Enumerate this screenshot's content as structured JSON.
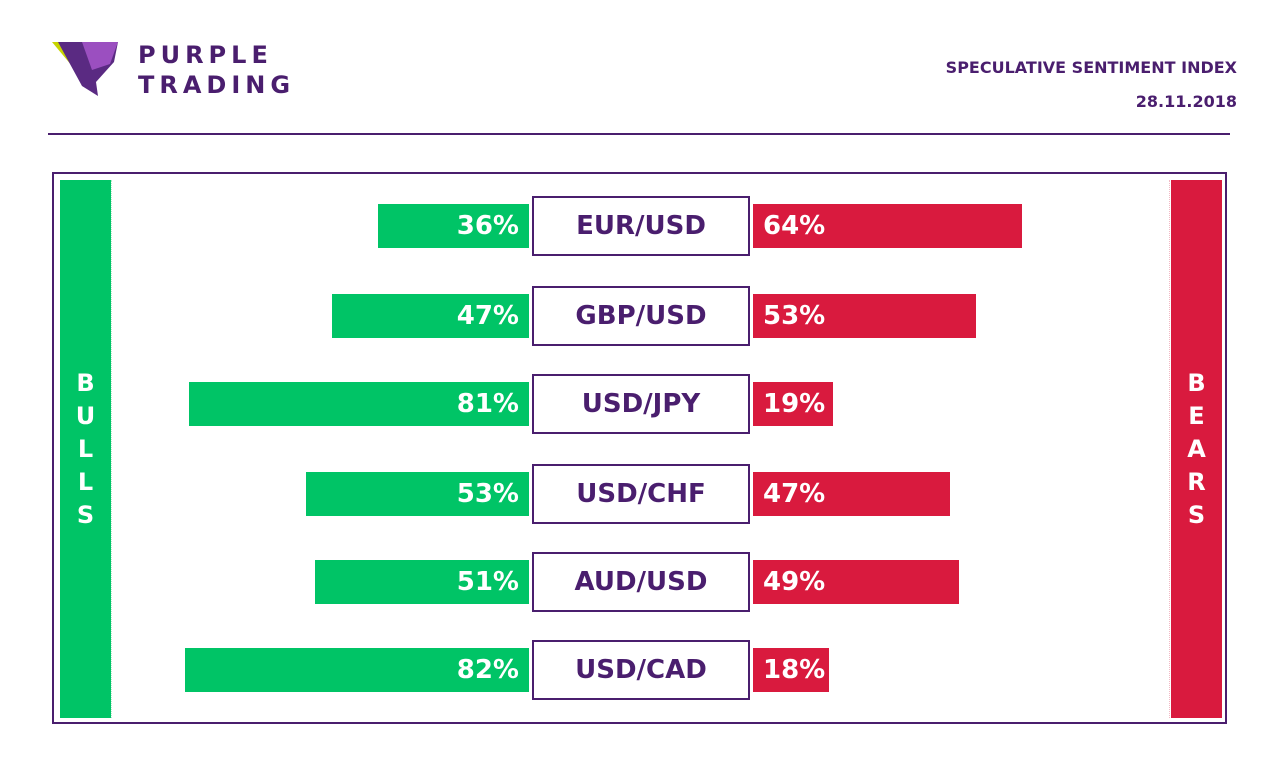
{
  "brand": {
    "line1": "PURPLE",
    "line2": "TRADING",
    "colors": {
      "purple": "#4a1e6e",
      "lime": "#c8d400",
      "violet": "#8b3fb0"
    }
  },
  "header": {
    "title": "SPECULATIVE SENTIMENT INDEX",
    "date": "28.11.2018"
  },
  "side": {
    "bulls": [
      "B",
      "U",
      "L",
      "L",
      "S"
    ],
    "bears": [
      "B",
      "E",
      "A",
      "R",
      "S"
    ]
  },
  "colors": {
    "bull": "#00c466",
    "bear": "#d91a3e",
    "accent": "#4a1e6e"
  },
  "chart_data": {
    "type": "bar",
    "categories": [
      "EUR/USD",
      "GBP/USD",
      "USD/JPY",
      "USD/CHF",
      "AUD/USD",
      "USD/CAD"
    ],
    "series": [
      {
        "name": "BULLS",
        "values": [
          36,
          47,
          81,
          53,
          51,
          82
        ]
      },
      {
        "name": "BEARS",
        "values": [
          64,
          53,
          19,
          47,
          49,
          18
        ]
      }
    ],
    "labels_bull": [
      "36%",
      "47%",
      "81%",
      "53%",
      "51%",
      "82%"
    ],
    "labels_bear": [
      "64%",
      "53%",
      "19%",
      "47%",
      "49%",
      "18%"
    ]
  }
}
